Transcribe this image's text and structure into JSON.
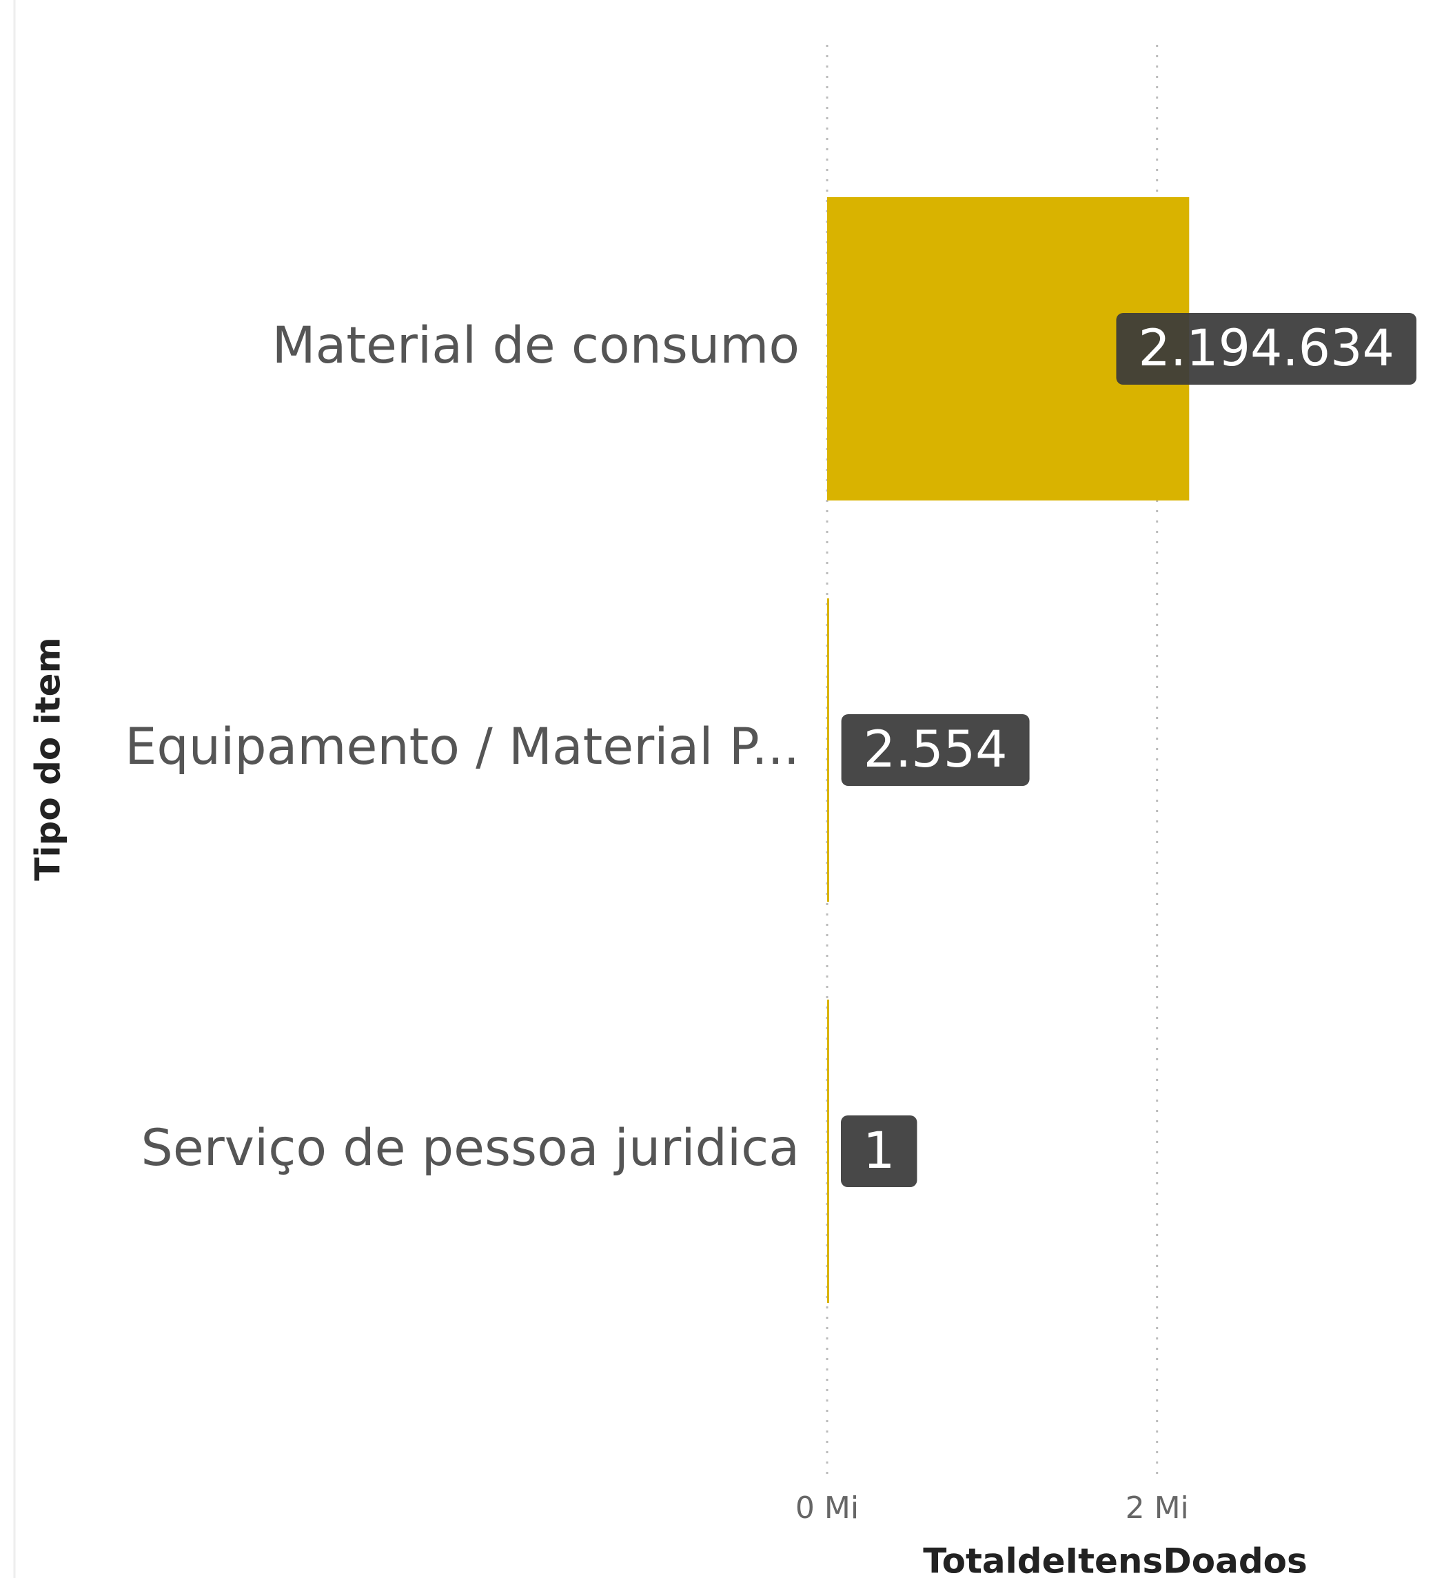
{
  "chart_data": {
    "type": "bar",
    "orientation": "horizontal",
    "categories": [
      "Material de consumo",
      "Equipamento / Material P...",
      "Serviço de pessoa juridica"
    ],
    "values": [
      2194634,
      2554,
      1
    ],
    "value_labels": [
      "2.194.634",
      "2.554",
      "1"
    ],
    "color": "#d9b300",
    "xlabel": "TotaldeItensDoados",
    "ylabel": "Tipo do item",
    "xlim": [
      0,
      3600000
    ],
    "xticks": [
      {
        "value": 0,
        "label": "0 Mi"
      },
      {
        "value": 2000000,
        "label": "2 Mi"
      }
    ],
    "grid": true
  }
}
